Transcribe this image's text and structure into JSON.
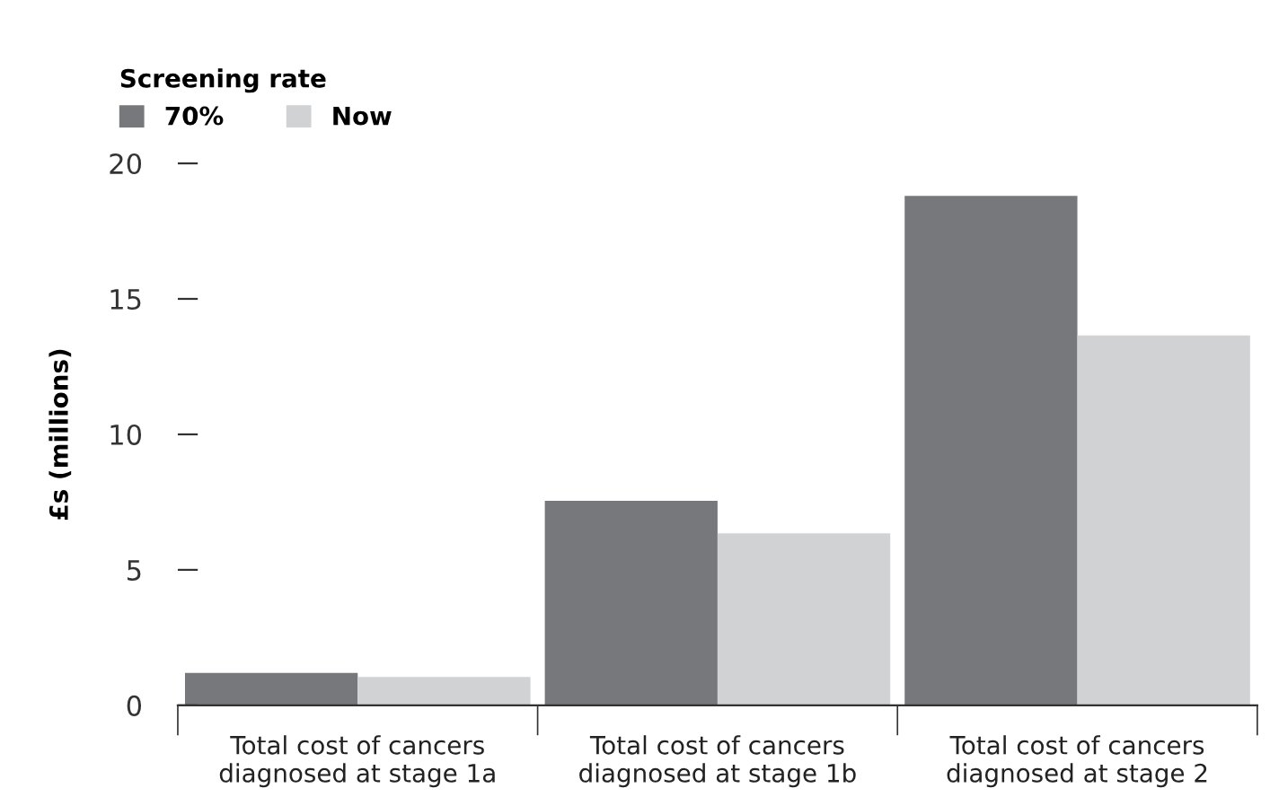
{
  "chart_data": {
    "type": "bar",
    "ylabel": "£s (millions)",
    "legend_title": "Screening rate",
    "legend": "top left",
    "categories": [
      "Total cost of cancers\ndiagnosed at stage 1a",
      "Total cost of cancers\ndiagnosed at stage 1b",
      "Total cost of cancers\ndiagnosed at stage 2"
    ],
    "series": [
      {
        "name": "70%",
        "color": "#77787b",
        "values": [
          1.2,
          7.55,
          18.8
        ]
      },
      {
        "name": "Now",
        "color": "#d1d2d4",
        "values": [
          1.05,
          6.35,
          13.65
        ]
      }
    ],
    "ylim": [
      0,
      20
    ],
    "yticks": [
      0,
      5,
      10,
      15,
      20
    ],
    "grid": false
  }
}
